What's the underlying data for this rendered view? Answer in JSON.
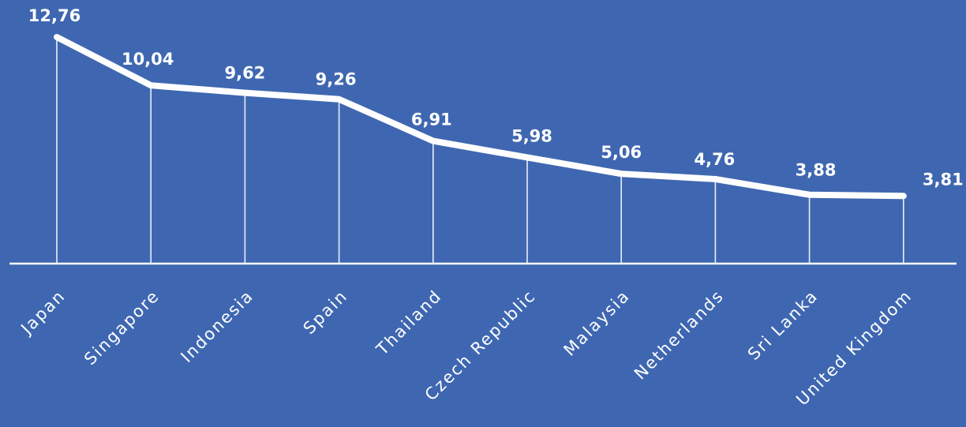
{
  "colors": {
    "background": "#3f67b1",
    "line": "#ffffff",
    "baseline": "#ffffff",
    "dropline": "#e8eef9",
    "text": "#ffffff"
  },
  "chart_data": {
    "type": "line",
    "title": "",
    "xlabel": "",
    "ylabel": "",
    "categories": [
      "Japan",
      "Singapore",
      "Indonesia",
      "Spain",
      "Thailand",
      "Czech Republic",
      "Malaysia",
      "Netherlands",
      "Sri Lanka",
      "United Kingdom"
    ],
    "series": [
      {
        "values": [
          12.76,
          10.04,
          9.62,
          9.26,
          6.91,
          5.98,
          5.06,
          4.76,
          3.88,
          3.81
        ],
        "labels": [
          "12,76",
          "10,04",
          "9,62",
          "9,26",
          "6,91",
          "5,98",
          "5,06",
          "4,76",
          "3,88",
          "3,81"
        ]
      }
    ],
    "ylim": [
      0,
      12.76
    ],
    "grid": false,
    "drop_lines": true,
    "legend": "none"
  }
}
